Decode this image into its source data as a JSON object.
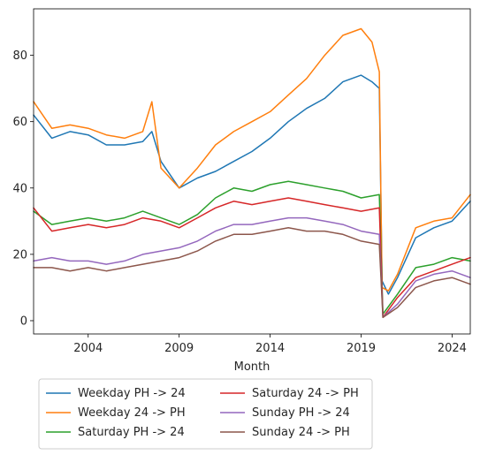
{
  "chart_data": {
    "type": "line",
    "title": "",
    "xlabel": "Month",
    "ylabel": "",
    "xlim": [
      2001.0,
      2025.0
    ],
    "ylim": [
      -4,
      94
    ],
    "x_ticks": [
      2004,
      2009,
      2014,
      2019,
      2024
    ],
    "x_tick_labels": [
      "2004",
      "2009",
      "2014",
      "2019",
      "2024"
    ],
    "y_ticks": [
      0,
      20,
      40,
      60,
      80
    ],
    "y_tick_labels": [
      "0",
      "20",
      "40",
      "60",
      "80"
    ],
    "grid": false,
    "legend": {
      "placement": "below-left",
      "columns": 2
    },
    "series": [
      {
        "name": "Weekday PH -> 24",
        "color": "#1f77b4",
        "x": [
          2001.0,
          2002.0,
          2003.0,
          2004.0,
          2005.0,
          2006.0,
          2007.0,
          2007.5,
          2008.0,
          2009.0,
          2010.0,
          2011.0,
          2012.0,
          2013.0,
          2014.0,
          2015.0,
          2016.0,
          2017.0,
          2018.0,
          2019.0,
          2019.6,
          2020.0,
          2020.15,
          2020.5,
          2021.0,
          2022.0,
          2023.0,
          2024.0,
          2025.0
        ],
        "y": [
          62,
          55,
          57,
          56,
          53,
          53,
          54,
          57,
          48,
          40,
          43,
          45,
          48,
          51,
          55,
          60,
          64,
          67,
          72,
          74,
          72,
          70,
          12,
          8,
          13,
          25,
          28,
          30,
          36
        ]
      },
      {
        "name": "Weekday 24 -> PH",
        "color": "#ff7f0e",
        "x": [
          2001.0,
          2002.0,
          2003.0,
          2004.0,
          2005.0,
          2006.0,
          2007.0,
          2007.5,
          2008.0,
          2009.0,
          2010.0,
          2011.0,
          2012.0,
          2013.0,
          2014.0,
          2015.0,
          2016.0,
          2017.0,
          2018.0,
          2019.0,
          2019.6,
          2020.0,
          2020.15,
          2020.5,
          2021.0,
          2022.0,
          2023.0,
          2024.0,
          2025.0
        ],
        "y": [
          66,
          58,
          59,
          58,
          56,
          55,
          57,
          66,
          46,
          40,
          46,
          53,
          57,
          60,
          63,
          68,
          73,
          80,
          86,
          88,
          84,
          75,
          10,
          9,
          14,
          28,
          30,
          31,
          38
        ]
      },
      {
        "name": "Saturday PH -> 24",
        "color": "#2ca02c",
        "x": [
          2001.0,
          2002.0,
          2003.0,
          2004.0,
          2005.0,
          2006.0,
          2007.0,
          2008.0,
          2009.0,
          2010.0,
          2011.0,
          2012.0,
          2013.0,
          2014.0,
          2015.0,
          2016.0,
          2017.0,
          2018.0,
          2019.0,
          2020.0,
          2020.2,
          2021.0,
          2022.0,
          2023.0,
          2024.0,
          2025.0
        ],
        "y": [
          33,
          29,
          30,
          31,
          30,
          31,
          33,
          31,
          29,
          32,
          37,
          40,
          39,
          41,
          42,
          41,
          40,
          39,
          37,
          38,
          2,
          8,
          16,
          17,
          19,
          18
        ]
      },
      {
        "name": "Saturday 24 -> PH",
        "color": "#d62728",
        "x": [
          2001.0,
          2002.0,
          2003.0,
          2004.0,
          2005.0,
          2006.0,
          2007.0,
          2008.0,
          2009.0,
          2010.0,
          2011.0,
          2012.0,
          2013.0,
          2014.0,
          2015.0,
          2016.0,
          2017.0,
          2018.0,
          2019.0,
          2020.0,
          2020.2,
          2021.0,
          2022.0,
          2023.0,
          2024.0,
          2025.0
        ],
        "y": [
          34,
          27,
          28,
          29,
          28,
          29,
          31,
          30,
          28,
          31,
          34,
          36,
          35,
          36,
          37,
          36,
          35,
          34,
          33,
          34,
          1,
          7,
          13,
          15,
          17,
          19
        ]
      },
      {
        "name": "Sunday PH -> 24",
        "color": "#9467bd",
        "x": [
          2001.0,
          2002.0,
          2003.0,
          2004.0,
          2005.0,
          2006.0,
          2007.0,
          2008.0,
          2009.0,
          2010.0,
          2011.0,
          2012.0,
          2013.0,
          2014.0,
          2015.0,
          2016.0,
          2017.0,
          2018.0,
          2019.0,
          2020.0,
          2020.2,
          2021.0,
          2022.0,
          2023.0,
          2024.0,
          2025.0
        ],
        "y": [
          18,
          19,
          18,
          18,
          17,
          18,
          20,
          21,
          22,
          24,
          27,
          29,
          29,
          30,
          31,
          31,
          30,
          29,
          27,
          26,
          1,
          5,
          12,
          14,
          15,
          13
        ]
      },
      {
        "name": "Sunday 24 -> PH",
        "color": "#8c564b",
        "x": [
          2001.0,
          2002.0,
          2003.0,
          2004.0,
          2005.0,
          2006.0,
          2007.0,
          2008.0,
          2009.0,
          2010.0,
          2011.0,
          2012.0,
          2013.0,
          2014.0,
          2015.0,
          2016.0,
          2017.0,
          2018.0,
          2019.0,
          2020.0,
          2020.2,
          2021.0,
          2022.0,
          2023.0,
          2024.0,
          2025.0
        ],
        "y": [
          16,
          16,
          15,
          16,
          15,
          16,
          17,
          18,
          19,
          21,
          24,
          26,
          26,
          27,
          28,
          27,
          27,
          26,
          24,
          23,
          1,
          4,
          10,
          12,
          13,
          11
        ]
      }
    ]
  }
}
